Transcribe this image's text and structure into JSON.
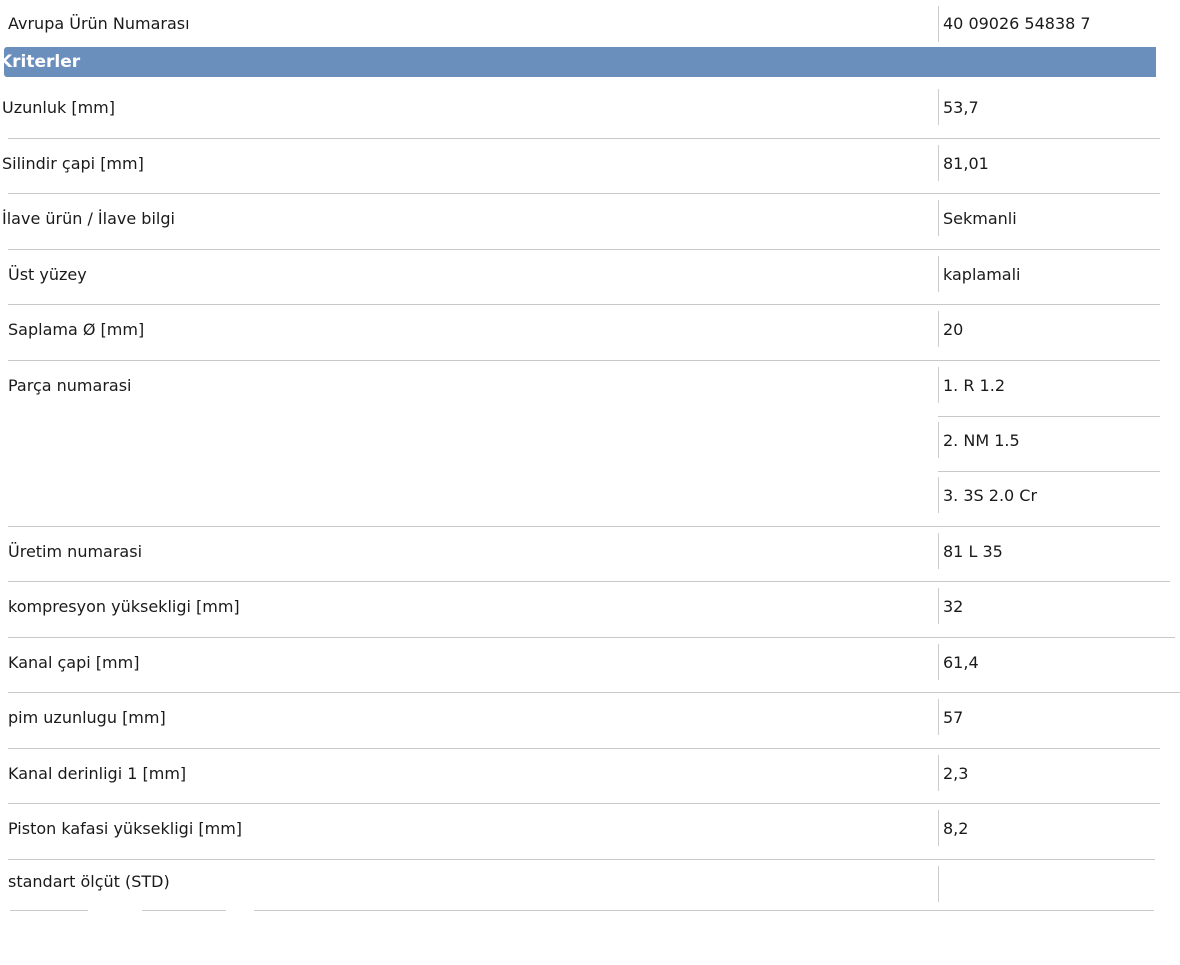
{
  "top_row": {
    "label": "Avrupa Ürün Numarası",
    "value": "40 09026 54838 7"
  },
  "section_header": "Kriterler",
  "rows": [
    {
      "label": "Uzunluk [mm]",
      "value": "53,7"
    },
    {
      "label": "Silindir çapi [mm]",
      "value": "81,01"
    },
    {
      "label": "İlave ürün / İlave bilgi",
      "value": "Sekmanli"
    },
    {
      "label": "Üst yüzey",
      "value": "kaplamali"
    },
    {
      "label": "Saplama Ø [mm]",
      "value": "20"
    },
    {
      "label": "Parça numarasi",
      "values": [
        "1. R 1.2",
        "2. NM 1.5",
        "3. 3S 2.0 Cr"
      ]
    },
    {
      "label": "Üretim numarasi",
      "value": "81 L 35"
    },
    {
      "label": "kompresyon yüksekligi [mm]",
      "value": "32"
    },
    {
      "label": "Kanal çapi [mm]",
      "value": "61,4"
    },
    {
      "label": "pim uzunlugu [mm]",
      "value": "57"
    },
    {
      "label": "Kanal derinligi 1 [mm]",
      "value": "2,3"
    },
    {
      "label": "Piston kafasi yüksekligi [mm]",
      "value": "8,2"
    },
    {
      "label": "standart ölçüt (STD)",
      "value": ""
    }
  ],
  "colors": {
    "header_bg": "#6b8fbc",
    "header_text": "#ffffff",
    "divider": "#c8c8c8"
  }
}
